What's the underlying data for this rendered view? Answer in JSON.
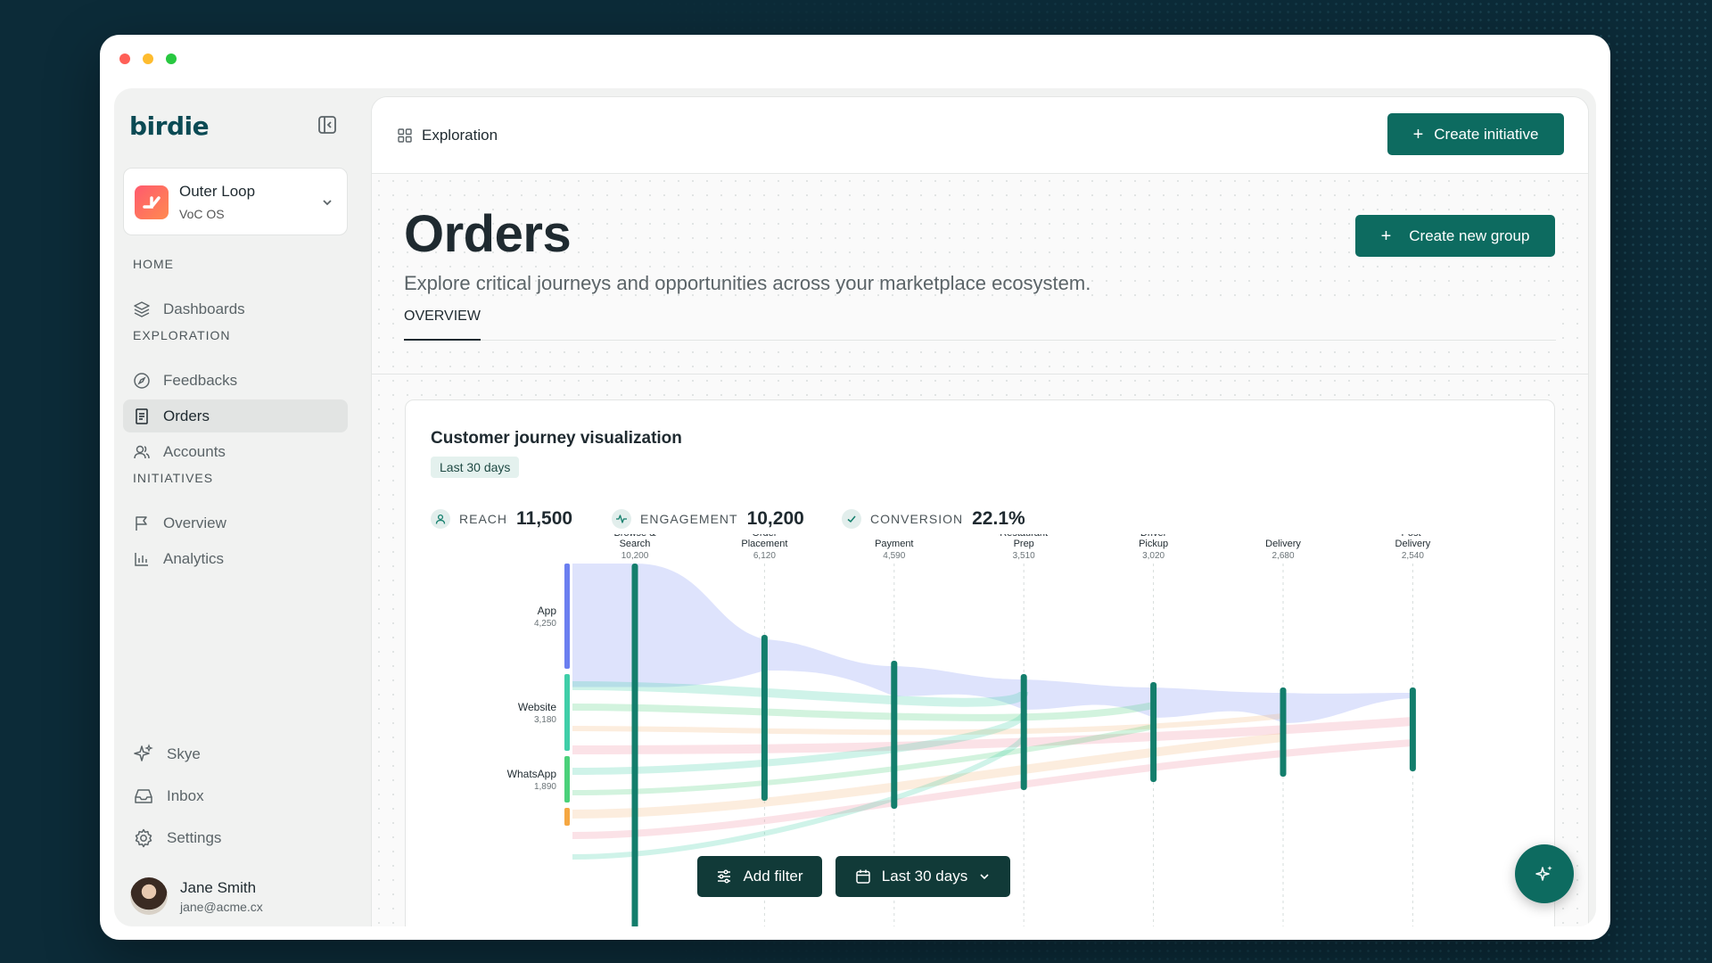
{
  "window": {
    "traffic_colors": [
      "#ff5f57",
      "#febc2e",
      "#28c840"
    ]
  },
  "sidebar": {
    "logo": "birdie",
    "workspace": {
      "name": "Outer Loop",
      "subtitle": "VoC OS"
    },
    "sections": [
      {
        "title": "HOME",
        "items": [
          {
            "label": "Dashboards",
            "icon": "layers-icon"
          }
        ]
      },
      {
        "title": "EXPLORATION",
        "items": [
          {
            "label": "Feedbacks",
            "icon": "compass-icon"
          },
          {
            "label": "Orders",
            "icon": "receipt-icon",
            "active": true
          },
          {
            "label": "Accounts",
            "icon": "users-icon"
          }
        ]
      },
      {
        "title": "INITIATIVES",
        "items": [
          {
            "label": "Overview",
            "icon": "flag-icon"
          },
          {
            "label": "Analytics",
            "icon": "bar-chart-icon"
          }
        ]
      }
    ],
    "bottom": [
      {
        "label": "Skye",
        "icon": "sparkle-icon"
      },
      {
        "label": "Inbox",
        "icon": "inbox-icon"
      },
      {
        "label": "Settings",
        "icon": "gear-icon"
      }
    ],
    "user": {
      "name": "Jane Smith",
      "email": "jane@acme.cx"
    }
  },
  "topbar": {
    "breadcrumb": "Exploration",
    "create_initiative": "Create initiative"
  },
  "page": {
    "title": "Orders",
    "subtitle": "Explore critical journeys and opportunities across your marketplace ecosystem.",
    "create_group": "Create new group",
    "tab": "OVERVIEW"
  },
  "card": {
    "title": "Customer journey visualization",
    "badge": "Last 30 days",
    "metrics": [
      {
        "label": "REACH",
        "value": "11,500",
        "icon": "user-icon"
      },
      {
        "label": "ENGAGEMENT",
        "value": "10,200",
        "icon": "activity-icon"
      },
      {
        "label": "CONVERSION",
        "value": "22.1%",
        "icon": "check-icon"
      }
    ]
  },
  "chart_data": {
    "type": "sankey",
    "stages": [
      {
        "name": "Browse & Search",
        "label_lines": [
          "Browse &",
          "Search"
        ],
        "value_label": "10,200",
        "value": 10200
      },
      {
        "name": "Order Placement",
        "label_lines": [
          "Order",
          "Placement"
        ],
        "value_label": "6,120",
        "value": 6120
      },
      {
        "name": "Payment",
        "label_lines": [
          "Payment"
        ],
        "value_label": "4,590",
        "value": 4590
      },
      {
        "name": "Restaurant Prep",
        "label_lines": [
          "Restaurant",
          "Prep"
        ],
        "value_label": "3,510",
        "value": 3510
      },
      {
        "name": "Driver Pickup",
        "label_lines": [
          "Driver",
          "Pickup"
        ],
        "value_label": "3,020",
        "value": 3020
      },
      {
        "name": "Delivery",
        "label_lines": [
          "Delivery"
        ],
        "value_label": "2,680",
        "value": 2680
      },
      {
        "name": "Post-Delivery",
        "label_lines": [
          "Post-",
          "Delivery"
        ],
        "value_label": "2,540",
        "value": 2540
      }
    ],
    "sources": [
      {
        "name": "App",
        "value_label": "4,250",
        "value": 4250,
        "color": "#6b7ff0"
      },
      {
        "name": "Website",
        "value_label": "3,180",
        "value": 3180,
        "color": "#3fcea8"
      },
      {
        "name": "WhatsApp",
        "value_label": "1,890",
        "value": 1890,
        "color": "#4bd17a"
      }
    ],
    "stage_color": "#137e6c"
  },
  "floating": {
    "add_filter": "Add filter",
    "date_range": "Last 30 days"
  }
}
